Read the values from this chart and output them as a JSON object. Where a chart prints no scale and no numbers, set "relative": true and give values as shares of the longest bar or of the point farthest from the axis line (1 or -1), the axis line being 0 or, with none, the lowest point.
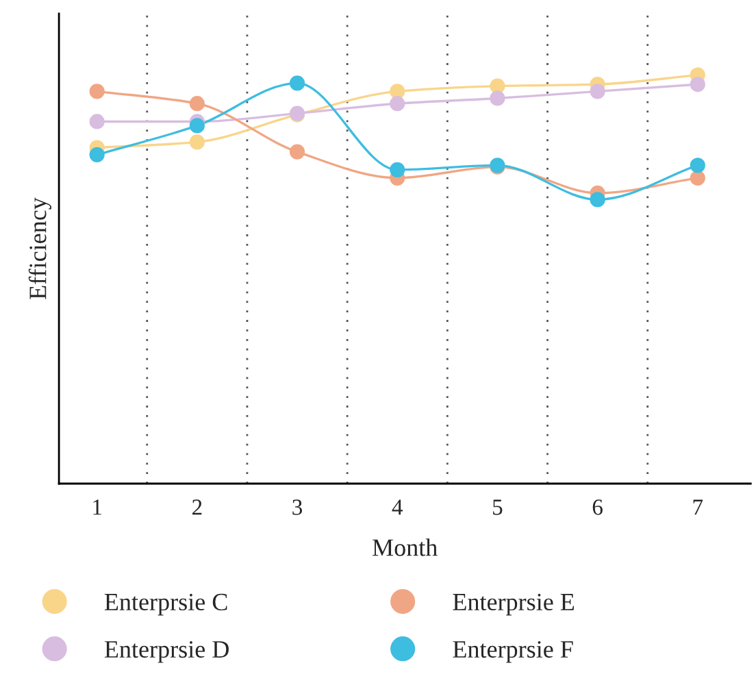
{
  "chart_data": {
    "type": "line",
    "relative": true,
    "xlabel": "Month",
    "ylabel": "Efficiency",
    "categories": [
      "1",
      "2",
      "3",
      "4",
      "5",
      "6",
      "7"
    ],
    "series": [
      {
        "name": "Enterprsie C",
        "color": "#f9d58a",
        "values": [
          0.822,
          0.836,
          0.903,
          0.96,
          0.973,
          0.977,
          1.0
        ]
      },
      {
        "name": "Enterprsie D",
        "color": "#d8bde0",
        "values": [
          0.886,
          0.886,
          0.906,
          0.93,
          0.943,
          0.96,
          0.977
        ]
      },
      {
        "name": "Enterprsie E",
        "color": "#f0a684",
        "values": [
          0.96,
          0.93,
          0.812,
          0.748,
          0.775,
          0.711,
          0.748
        ]
      },
      {
        "name": "Enterprsie F",
        "color": "#3dbde0",
        "values": [
          0.805,
          0.876,
          0.98,
          0.768,
          0.779,
          0.695,
          0.779
        ]
      }
    ],
    "marker": "circle",
    "grid": "x",
    "legend": "bottom"
  }
}
